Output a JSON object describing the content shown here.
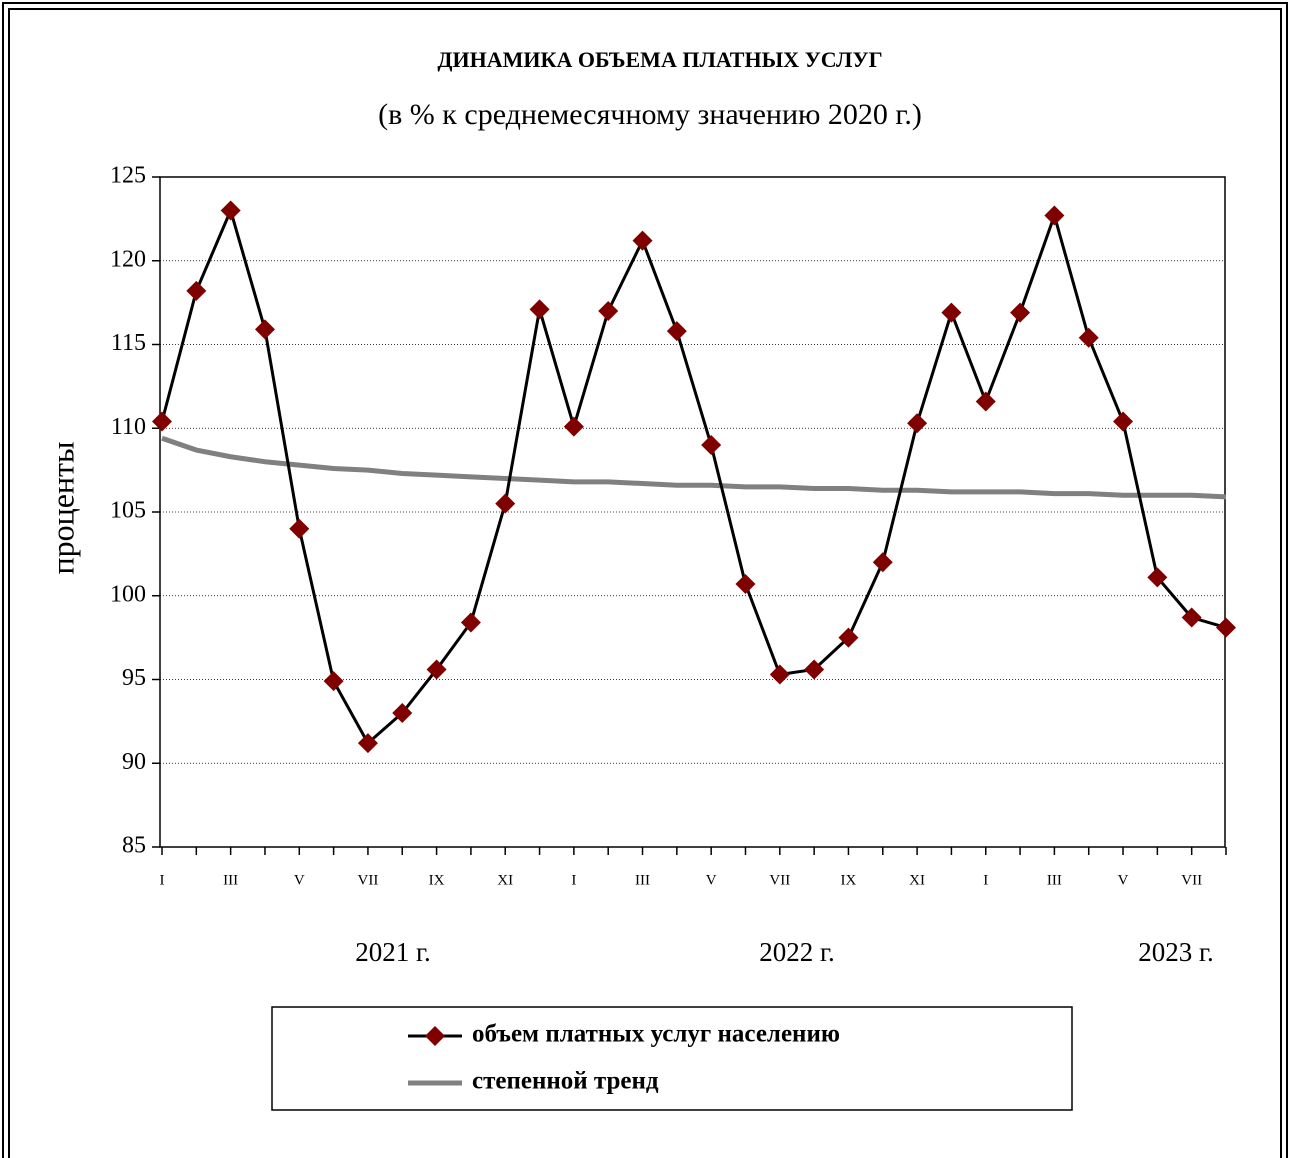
{
  "chart_data": {
    "type": "line",
    "title": "ДИНАМИКА ОБЪЕМА ПЛАТНЫХ УСЛУГ",
    "subtitle": "(в % к среднемесячному значению 2020 г.)",
    "y_axis_label": "проценты",
    "categories": [
      "I",
      null,
      "III",
      null,
      "V",
      null,
      "VII",
      null,
      "IX",
      null,
      "XI",
      null,
      "I",
      null,
      "III",
      null,
      "V",
      null,
      "VII",
      null,
      "IX",
      null,
      "XI",
      null,
      "I",
      null,
      "III",
      null,
      "V",
      null,
      "VII",
      null
    ],
    "annotations": [
      "2021 г.",
      "2022 г.",
      "2023 г."
    ],
    "series": [
      {
        "name": "объем платных услуг населению",
        "color": "#800000",
        "line_color": "#000000",
        "marker": "diamond",
        "values": [
          110.4,
          118.2,
          123.0,
          115.9,
          104.0,
          94.9,
          91.2,
          93.0,
          95.6,
          98.4,
          105.5,
          117.1,
          110.1,
          117.0,
          121.2,
          115.8,
          109.0,
          100.7,
          95.3,
          95.6,
          97.5,
          102.0,
          110.3,
          116.9,
          111.6,
          116.9,
          122.7,
          115.4,
          110.4,
          101.1,
          98.7,
          98.1
        ]
      },
      {
        "name": "степенной тренд",
        "color": "#808080",
        "values": [
          109.4,
          108.7,
          108.3,
          108.0,
          107.8,
          107.6,
          107.5,
          107.3,
          107.2,
          107.1,
          107.0,
          106.9,
          106.8,
          106.8,
          106.7,
          106.6,
          106.6,
          106.5,
          106.5,
          106.4,
          106.4,
          106.3,
          106.3,
          106.2,
          106.2,
          106.2,
          106.1,
          106.1,
          106.0,
          106.0,
          106.0,
          105.9
        ]
      }
    ],
    "ylim": [
      85,
      125
    ],
    "yticks": [
      85,
      90,
      95,
      100,
      105,
      110,
      115,
      120,
      125
    ],
    "grid": true,
    "legend": "bottom"
  }
}
